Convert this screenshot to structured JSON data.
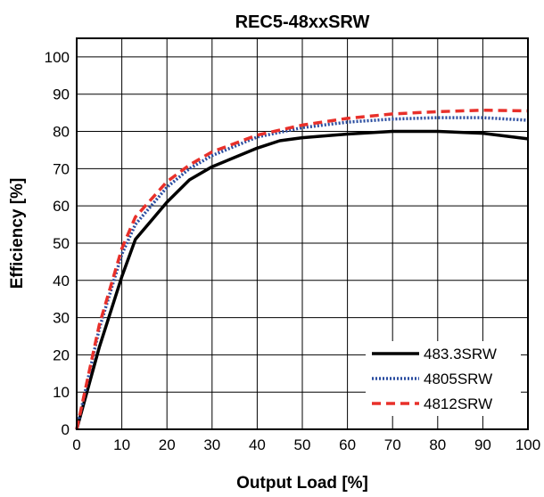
{
  "chart_data": {
    "type": "line",
    "title": "REC5-48xxSRW",
    "xlabel": "Output Load [%]",
    "ylabel": "Efficiency [%]",
    "xlim": [
      0,
      100
    ],
    "ylim": [
      0,
      105
    ],
    "xticks": [
      "0",
      "10",
      "20",
      "30",
      "40",
      "50",
      "60",
      "70",
      "80",
      "90",
      "100"
    ],
    "yticks": [
      "0",
      "10",
      "20",
      "30",
      "40",
      "50",
      "60",
      "70",
      "80",
      "90",
      "100"
    ],
    "grid": true,
    "legend_position": "bottom-right",
    "series": [
      {
        "name": "483.3SRW",
        "color": "#000000",
        "style": "solid",
        "points": [
          [
            0,
            0
          ],
          [
            5,
            22
          ],
          [
            10,
            41
          ],
          [
            13,
            51
          ],
          [
            20,
            61
          ],
          [
            25,
            67
          ],
          [
            30,
            70.5
          ],
          [
            40,
            75.5
          ],
          [
            45,
            77.5
          ],
          [
            50,
            78.3
          ],
          [
            60,
            79.3
          ],
          [
            70,
            80
          ],
          [
            80,
            80
          ],
          [
            90,
            79.5
          ],
          [
            100,
            78
          ]
        ]
      },
      {
        "name": "4805SRW",
        "color": "#2a4da0",
        "style": "dotted",
        "points": [
          [
            0,
            0
          ],
          [
            5,
            27
          ],
          [
            10,
            47
          ],
          [
            13,
            55
          ],
          [
            20,
            65
          ],
          [
            25,
            70
          ],
          [
            30,
            73.5
          ],
          [
            40,
            78.5
          ],
          [
            50,
            81
          ],
          [
            60,
            82.5
          ],
          [
            70,
            83.3
          ],
          [
            80,
            83.7
          ],
          [
            90,
            83.7
          ],
          [
            100,
            83
          ]
        ]
      },
      {
        "name": "4812SRW",
        "color": "#e8302a",
        "style": "dashed",
        "points": [
          [
            0,
            0
          ],
          [
            5,
            28
          ],
          [
            10,
            48.5
          ],
          [
            13,
            57
          ],
          [
            20,
            66.5
          ],
          [
            25,
            71
          ],
          [
            30,
            74.5
          ],
          [
            40,
            79
          ],
          [
            50,
            81.7
          ],
          [
            60,
            83.5
          ],
          [
            70,
            84.7
          ],
          [
            80,
            85.3
          ],
          [
            90,
            85.7
          ],
          [
            100,
            85.5
          ]
        ]
      }
    ]
  }
}
